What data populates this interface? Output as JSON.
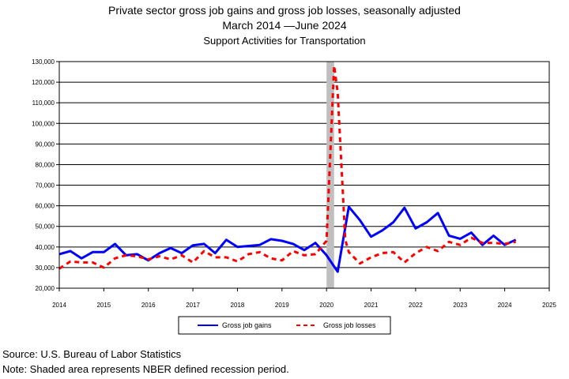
{
  "chart_data": {
    "type": "line",
    "title": "Private sector gross job gains and gross job losses, seasonally adjusted",
    "subtitle_period": "March 2014 —June 2024",
    "subtitle_industry": "Support Activities for Transportation",
    "xlabel": "",
    "ylabel": "",
    "xlim": [
      2014,
      2025
    ],
    "ylim": [
      20000,
      130000
    ],
    "x_ticks": [
      "2014",
      "2015",
      "2016",
      "2017",
      "2018",
      "2019",
      "2020",
      "2021",
      "2022",
      "2023",
      "2024",
      "2025"
    ],
    "y_ticks": [
      "20,000",
      "30,000",
      "40,000",
      "50,000",
      "60,000",
      "70,000",
      "80,000",
      "90,000",
      "100,000",
      "110,000",
      "120,000",
      "130,000"
    ],
    "grid": "horizontal",
    "legend_placement": "bottom",
    "recession_shade": {
      "x_start": 2020.0,
      "x_end": 2020.17,
      "color": "#bfbfbf"
    },
    "series": [
      {
        "name": "Gross job gains",
        "color": "#0000ff",
        "style": "solid",
        "x": [
          2014.0,
          2014.25,
          2014.5,
          2014.75,
          2015.0,
          2015.25,
          2015.5,
          2015.75,
          2016.0,
          2016.25,
          2016.5,
          2016.75,
          2017.0,
          2017.25,
          2017.5,
          2017.75,
          2018.0,
          2018.25,
          2018.5,
          2018.75,
          2019.0,
          2019.25,
          2019.5,
          2019.75,
          2020.0,
          2020.25,
          2020.5,
          2020.75,
          2021.0,
          2021.25,
          2021.5,
          2021.75,
          2022.0,
          2022.25,
          2022.5,
          2022.75,
          2023.0,
          2023.25,
          2023.5,
          2023.75,
          2024.0,
          2024.25
        ],
        "values": [
          36500,
          38000,
          34500,
          37500,
          37500,
          41500,
          36000,
          36500,
          33500,
          37000,
          39500,
          37000,
          40800,
          41500,
          37000,
          43500,
          40000,
          40500,
          41000,
          43800,
          43000,
          41500,
          38500,
          42000,
          36000,
          28000,
          59500,
          53000,
          45000,
          48000,
          52000,
          59000,
          49000,
          52000,
          56500,
          45500,
          44000,
          47000,
          41000,
          45500,
          41000,
          43500
        ]
      },
      {
        "name": "Gross job losses",
        "color": "#ff0000",
        "style": "dashed",
        "x": [
          2014.0,
          2014.25,
          2014.5,
          2014.75,
          2015.0,
          2015.25,
          2015.5,
          2015.75,
          2016.0,
          2016.25,
          2016.5,
          2016.75,
          2017.0,
          2017.25,
          2017.5,
          2017.75,
          2018.0,
          2018.25,
          2018.5,
          2018.75,
          2019.0,
          2019.25,
          2019.5,
          2019.75,
          2020.0,
          2020.17,
          2020.25,
          2020.42,
          2020.5,
          2020.75,
          2021.0,
          2021.25,
          2021.5,
          2021.75,
          2022.0,
          2022.25,
          2022.5,
          2022.75,
          2023.0,
          2023.25,
          2023.5,
          2023.75,
          2024.0,
          2024.25
        ],
        "values": [
          29500,
          33000,
          32500,
          32500,
          30000,
          34500,
          36000,
          35500,
          34000,
          35500,
          34000,
          36000,
          32500,
          38000,
          35000,
          35000,
          33000,
          36500,
          37500,
          34500,
          33500,
          38000,
          36000,
          36500,
          43000,
          128000,
          115000,
          43500,
          37500,
          32000,
          35000,
          37000,
          37500,
          32500,
          37000,
          40000,
          38000,
          42500,
          41000,
          44500,
          42000,
          42000,
          41500,
          42500
        ]
      }
    ]
  },
  "footer": {
    "source": "Source: U.S. Bureau of Labor Statistics",
    "note": "Note: Shaded area represents NBER defined recession period."
  }
}
